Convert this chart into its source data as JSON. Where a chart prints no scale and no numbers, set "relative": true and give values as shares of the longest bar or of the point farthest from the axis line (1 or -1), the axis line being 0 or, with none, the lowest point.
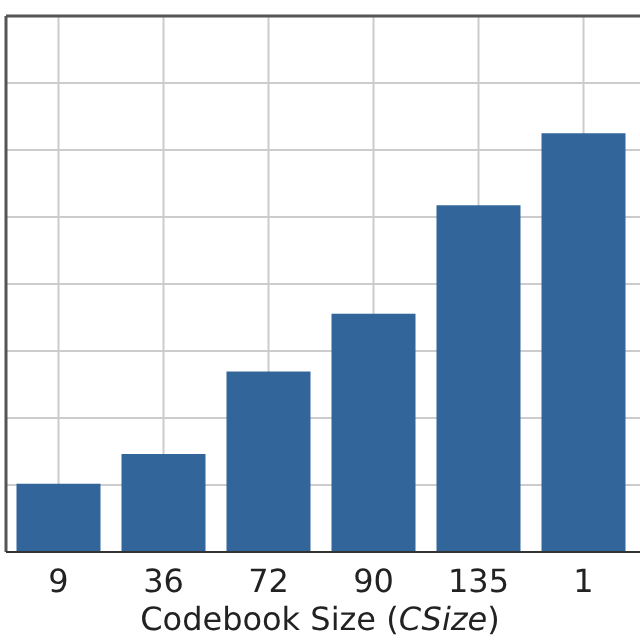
{
  "chart_data": {
    "type": "bar",
    "xlabel": "Codebook Size (CSize)",
    "categories": [
      "9",
      "36",
      "72",
      "90",
      "135",
      "1"
    ],
    "values": [
      0.163,
      0.234,
      0.431,
      0.569,
      0.828,
      1
    ],
    "color": "#32659a",
    "relative": true,
    "grid": true
  }
}
